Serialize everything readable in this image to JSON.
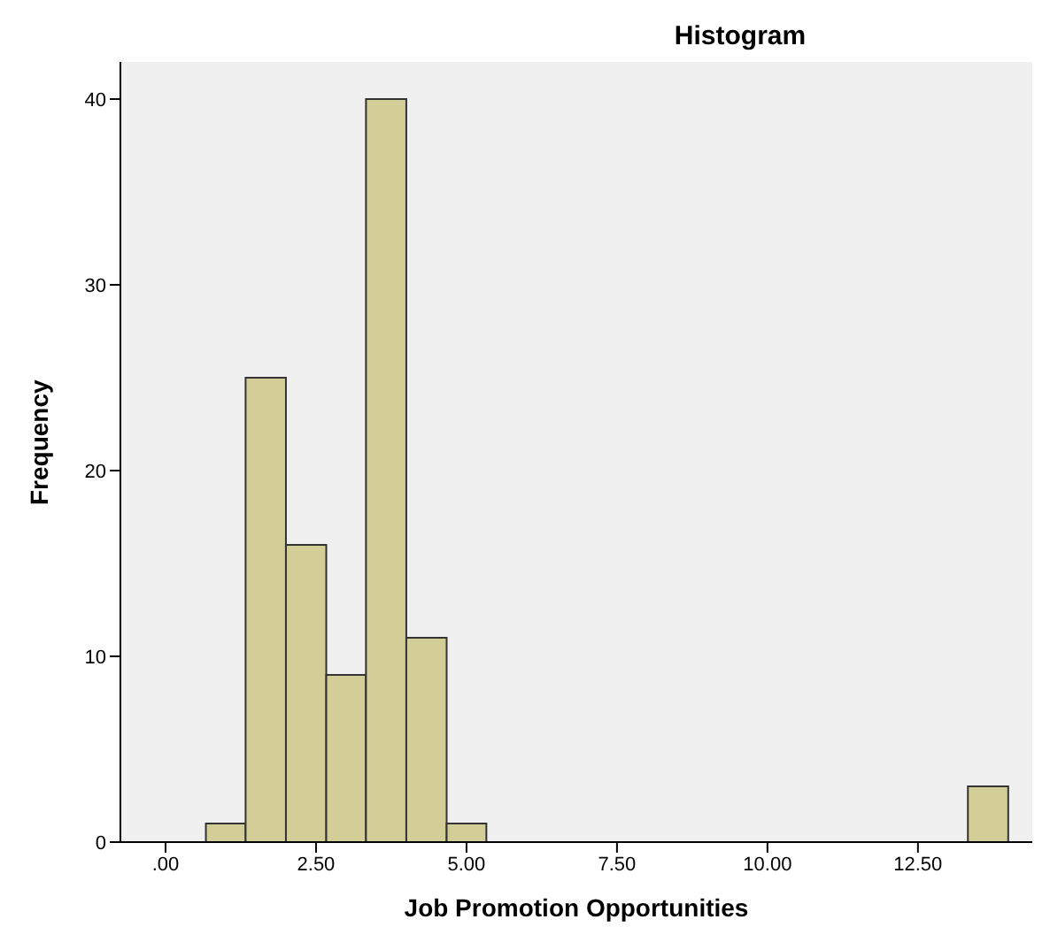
{
  "chart_data": {
    "type": "histogram",
    "title": "Histogram",
    "xlabel": "Job Promotion Opportunities",
    "ylabel": "Frequency",
    "bins": [
      0.67,
      1.33,
      2,
      2.67,
      3.33,
      4,
      4.67,
      5.33,
      13.33,
      14
    ],
    "values": [
      1,
      25,
      16,
      9,
      40,
      11,
      1,
      0,
      3
    ],
    "color": "#d3ce98",
    "xlim": [
      -0.75,
      14.4
    ],
    "xticks": [
      {
        "value": 0,
        "label": ".00"
      },
      {
        "value": 2.5,
        "label": "2.50"
      },
      {
        "value": 5,
        "label": "5.00"
      },
      {
        "value": 7.5,
        "label": "7.50"
      },
      {
        "value": 10,
        "label": "10.00"
      },
      {
        "value": 12.5,
        "label": "12.50"
      }
    ],
    "ylim": [
      0,
      42
    ],
    "yticks": [
      0,
      10,
      20,
      30,
      40
    ],
    "grid": false,
    "legend": false
  }
}
